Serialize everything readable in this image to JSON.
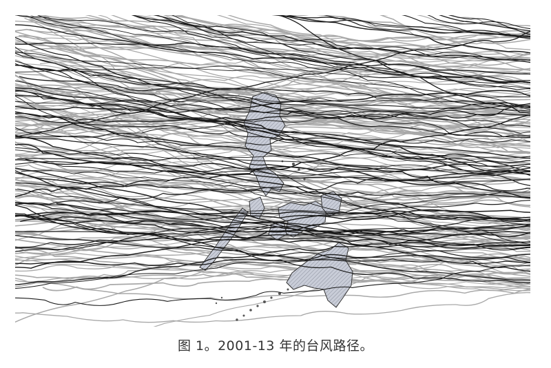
{
  "figure": {
    "caption": "图 1。2001-13 年的台风路径。"
  },
  "legend_colors": {
    "track_dark": "#1a1a1a",
    "track_light": "#a8a8a8",
    "land_fill": "#c7cbd6",
    "land_outline": "#333333"
  }
}
